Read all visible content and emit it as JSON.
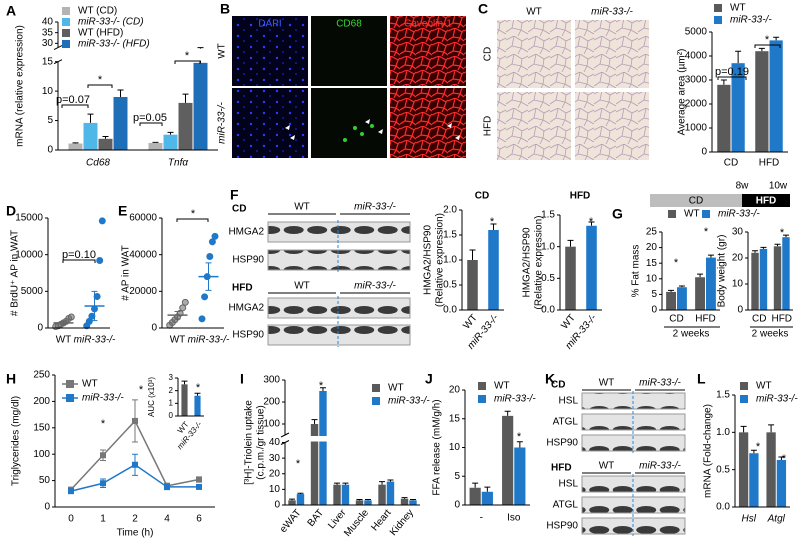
{
  "chart_data": [
    {
      "type": "bar",
      "panel": "A",
      "ylabel": "mRNA (relative expression)",
      "categories": [
        "Cd68",
        "Tnfα"
      ],
      "series": [
        {
          "name": "WT (CD)",
          "color": "#b4b4b4",
          "values": [
            1.1,
            1.2
          ],
          "errors": [
            0.1,
            0.1
          ]
        },
        {
          "name": "miR-33-/- (CD)",
          "color": "#4fb8e8",
          "values": [
            4.6,
            2.6
          ],
          "errors": [
            1.5,
            0.4
          ]
        },
        {
          "name": "WT (HFD)",
          "color": "#5f5f5f",
          "values": [
            1.9,
            8.0
          ],
          "errors": [
            0.4,
            1.5
          ]
        },
        {
          "name": "miR-33-/- (HFD)",
          "color": "#1f6fb8",
          "values": [
            9.0,
            14.8
          ],
          "errors": [
            1.2,
            0.5
          ]
        }
      ],
      "ylim": [
        0,
        40
      ],
      "ysegments": [
        [
          0,
          15
        ],
        [
          28,
          40
        ]
      ],
      "yticks": [
        0,
        5,
        10,
        15,
        30,
        35,
        40
      ],
      "legend": "upper left",
      "annotations": [
        "p=0.07",
        "*",
        "p=0.05",
        "*"
      ]
    },
    {
      "type": "bar",
      "ylabel": "Average area (µm²)",
      "categories": [
        "CD",
        "HFD"
      ],
      "series": [
        {
          "name": "WT",
          "color": "#5a5a5a",
          "values": [
            2800,
            4200
          ],
          "errors": [
            200,
            120
          ]
        },
        {
          "name": "miR-33-/-",
          "color": "#1f78c8",
          "values": [
            3700,
            4650
          ],
          "errors": [
            500,
            130
          ]
        }
      ],
      "ylim": [
        0,
        5000
      ],
      "yticks": [
        0,
        1000,
        2000,
        3000,
        4000,
        5000
      ],
      "legend": "upper left",
      "annotations": [
        "p=0.19",
        "*"
      ]
    },
    {
      "type": "dot",
      "panel": "D",
      "ylabel": "# BrdU⁺ AP in WAT",
      "categories": [
        "WT",
        "miR-33-/-"
      ],
      "points": [
        [
          200,
          300,
          500,
          700,
          900,
          1300,
          1500
        ],
        [
          300,
          900,
          1600,
          2600,
          4300,
          9200,
          14600
        ]
      ],
      "means": [
        700,
        3000
      ],
      "errors": [
        200,
        2000
      ],
      "colors": [
        "#666666",
        "#1f78c8"
      ],
      "ylim": [
        0,
        15000
      ],
      "yticks": [
        0,
        5000,
        10000,
        15000
      ],
      "annotations": [
        "p=0.10"
      ]
    },
    {
      "type": "dot",
      "panel": "E",
      "ylabel": "# AP in WAT",
      "categories": [
        "WT",
        "miR-33-/-"
      ],
      "points": [
        [
          1500,
          3000,
          4500,
          6000,
          8000,
          11000,
          14000
        ],
        [
          5000,
          17000,
          28000,
          39000,
          47000,
          50000
        ]
      ],
      "means": [
        7000,
        28000
      ],
      "errors": [
        2000,
        7500
      ],
      "colors": [
        "#666666",
        "#1f78c8"
      ],
      "ylim": [
        0,
        60000
      ],
      "yticks": [
        0,
        20000,
        40000,
        60000
      ],
      "annotations": [
        "*"
      ]
    },
    {
      "type": "bar",
      "title": "CD",
      "ylabel": [
        "HMGA2/HSP90",
        "(Relative expression)"
      ],
      "categories": [
        "WT",
        "miR-33-/-"
      ],
      "values": [
        1.0,
        1.6
      ],
      "errors": [
        0.2,
        0.12
      ],
      "colors": [
        "#5a5a5a",
        "#1f78c8"
      ],
      "ylim": [
        0,
        2
      ],
      "yticks": [
        {
          "value": 0,
          "label": "0.0"
        },
        0.5,
        {
          "value": 1,
          "label": "1.0"
        },
        1.5,
        {
          "value": 2,
          "label": "2.0"
        }
      ],
      "annotations": [
        "*"
      ]
    },
    {
      "type": "bar",
      "title": "HFD",
      "ylabel": [
        "HMGA2/HSP90",
        "(Relative expression)"
      ],
      "categories": [
        "WT",
        "miR-33-/-"
      ],
      "values": [
        1.0,
        1.33
      ],
      "errors": [
        0.1,
        0.06
      ],
      "colors": [
        "#5a5a5a",
        "#1f78c8"
      ],
      "ylim": [
        0,
        1.5
      ],
      "yticks": [
        {
          "value": 0,
          "label": "0.0"
        },
        0.5,
        {
          "value": 1,
          "label": "1.0"
        },
        1.5
      ],
      "annotations": [
        "*"
      ]
    },
    {
      "type": "bar",
      "panel": "G",
      "ylabel": "% Fat mass",
      "xlabel": "2 weeks",
      "categories": [
        "CD",
        "HFD"
      ],
      "series": [
        {
          "name": "WT",
          "color": "#5a5a5a",
          "values": [
            5.8,
            10.5
          ],
          "errors": [
            0.5,
            1.0
          ]
        },
        {
          "name": "miR-33-/-",
          "color": "#1f78c8",
          "values": [
            7.3,
            16.8
          ],
          "errors": [
            0.4,
            0.8
          ]
        }
      ],
      "ylim": [
        0,
        25
      ],
      "yticks": [
        0,
        5,
        10,
        15,
        20,
        25
      ],
      "legend": "top",
      "annotations": [
        "*",
        "*"
      ]
    },
    {
      "type": "bar",
      "ylabel": "Body weight (gr)",
      "xlabel": "2 weeks",
      "categories": [
        "CD",
        "HFD"
      ],
      "series": [
        {
          "color": "#5a5a5a",
          "values": [
            22,
            24.5
          ],
          "errors": [
            0.8,
            0.8
          ]
        },
        {
          "color": "#1f78c8",
          "values": [
            23.5,
            28
          ],
          "errors": [
            0.6,
            0.8
          ]
        }
      ],
      "ylim": [
        0,
        30
      ],
      "yticks": [
        0,
        10,
        20,
        30
      ],
      "annotations": [
        "*"
      ]
    },
    {
      "type": "line",
      "panel": "H",
      "ylabel": "Triglycerides (mg/dl)",
      "xlabel": "Time (h)",
      "categories": [
        "0",
        "1",
        "2",
        "4",
        "6"
      ],
      "series": [
        {
          "name": "WT",
          "color": "#777777",
          "values": [
            33,
            98,
            163,
            40,
            52
          ],
          "errors": [
            4,
            10,
            40,
            5,
            5
          ]
        },
        {
          "name": "miR-33-/-",
          "color": "#1f78c8",
          "values": [
            30,
            45,
            80,
            38,
            38
          ],
          "errors": [
            3,
            8,
            20,
            5,
            4
          ]
        }
      ],
      "ylim": [
        0,
        250
      ],
      "yticks": [
        0,
        50,
        100,
        150,
        200,
        250
      ],
      "legend": "upper left",
      "annotations": [
        "*",
        "*"
      ]
    },
    {
      "type": "bar",
      "ylabel": "AUC (x10³)",
      "categories": [
        "WT",
        "miR-33-/-"
      ],
      "values": [
        2.5,
        1.6
      ],
      "errors": [
        0.25,
        0.2
      ],
      "colors": [
        "#5a5a5a",
        "#1f78c8"
      ],
      "ylim": [
        0,
        3
      ],
      "yticks": [
        0,
        1,
        2,
        3
      ],
      "annotations": [
        "*"
      ]
    },
    {
      "type": "bar",
      "panel": "I",
      "ylabel": [
        "[³H]-Triolein uptake",
        "(c.p.m./gr tissue)"
      ],
      "categories": [
        "eWAT",
        "BAT",
        "Liver",
        "Muscle",
        "Heart",
        "Kidney"
      ],
      "series": [
        {
          "name": "WT",
          "color": "#5a5a5a",
          "values": [
            3,
            100,
            13,
            3,
            13,
            4
          ],
          "errors": [
            0.8,
            20,
            1,
            0.5,
            2,
            0.7
          ]
        },
        {
          "name": "miR-33-/-",
          "color": "#1f78c8",
          "values": [
            7,
            250,
            13,
            3,
            15,
            3
          ],
          "errors": [
            0.5,
            15,
            1,
            0.5,
            1,
            0.5
          ]
        }
      ],
      "ylim": [
        0,
        300
      ],
      "ysegments": [
        [
          0,
          40
        ],
        [
          50,
          300
        ]
      ],
      "yticks": [
        0,
        10,
        20,
        30,
        40,
        100,
        200,
        300
      ],
      "legend": "upper right",
      "annotations": [
        "*",
        "*"
      ]
    },
    {
      "type": "bar",
      "panel": "J",
      "ylabel": "FFA release (mM/g/h)",
      "categories": [
        "-",
        "Iso"
      ],
      "series": [
        {
          "name": "WT",
          "color": "#5a5a5a",
          "values": [
            3,
            15.5
          ],
          "errors": [
            0.8,
            0.8
          ]
        },
        {
          "name": "miR-33-/-",
          "color": "#1f78c8",
          "values": [
            2.3,
            10
          ],
          "errors": [
            0.8,
            1
          ]
        }
      ],
      "ylim": [
        0,
        20
      ],
      "yticks": [
        0,
        5,
        10,
        15,
        20
      ],
      "legend": "upper left",
      "annotations": [
        "*"
      ]
    },
    {
      "type": "bar",
      "panel": "L",
      "ylabel": "mRNA (Fold-change)",
      "categories": [
        "Hsl",
        "Atgl"
      ],
      "series": [
        {
          "name": "WT",
          "color": "#5a5a5a",
          "values": [
            1.0,
            1.0
          ],
          "errors": [
            0.08,
            0.1
          ]
        },
        {
          "name": "miR-33-/-",
          "color": "#1f78c8",
          "values": [
            0.72,
            0.63
          ],
          "errors": [
            0.04,
            0.04
          ]
        }
      ],
      "ylim": [
        0,
        1.5
      ],
      "yticks": [
        {
          "value": 0,
          "label": "0.0"
        },
        0.5,
        {
          "value": 1,
          "label": "1.0"
        },
        1.5
      ],
      "legend": "upper left",
      "annotations": [
        "*",
        "*"
      ]
    }
  ],
  "micrographs": [
    {
      "panel": "B",
      "columns": [
        "DAPI",
        "CD68",
        "Caveolin-1"
      ],
      "rows": [
        "WT",
        "miR-33-/-"
      ]
    },
    {
      "panel": "C",
      "columns": [
        "WT",
        "miR-33-/-"
      ],
      "rows": [
        "CD",
        "HFD"
      ]
    }
  ],
  "blots": [
    {
      "panel": "F",
      "blocks": [
        {
          "condition": "CD",
          "groups": [
            "WT",
            "miR-33-/-"
          ],
          "bands": [
            "HMGA2",
            "HSP90"
          ]
        },
        {
          "condition": "HFD",
          "groups": [
            "WT",
            "miR-33-/-"
          ],
          "bands": [
            "HMGA2",
            "HSP90"
          ]
        }
      ]
    },
    {
      "panel": "K",
      "blocks": [
        {
          "condition": "CD",
          "groups": [
            "WT",
            "miR-33-/-"
          ],
          "bands": [
            "HSL",
            "ATGL",
            "HSP90"
          ]
        },
        {
          "condition": "HFD",
          "groups": [
            "WT",
            "miR-33-/-"
          ],
          "bands": [
            "HSL",
            "ATGL",
            "HSP90"
          ]
        }
      ]
    }
  ],
  "diet_timeline": {
    "phases": [
      "CD",
      "HFD"
    ],
    "weeks": [
      "8w",
      "10w"
    ]
  }
}
